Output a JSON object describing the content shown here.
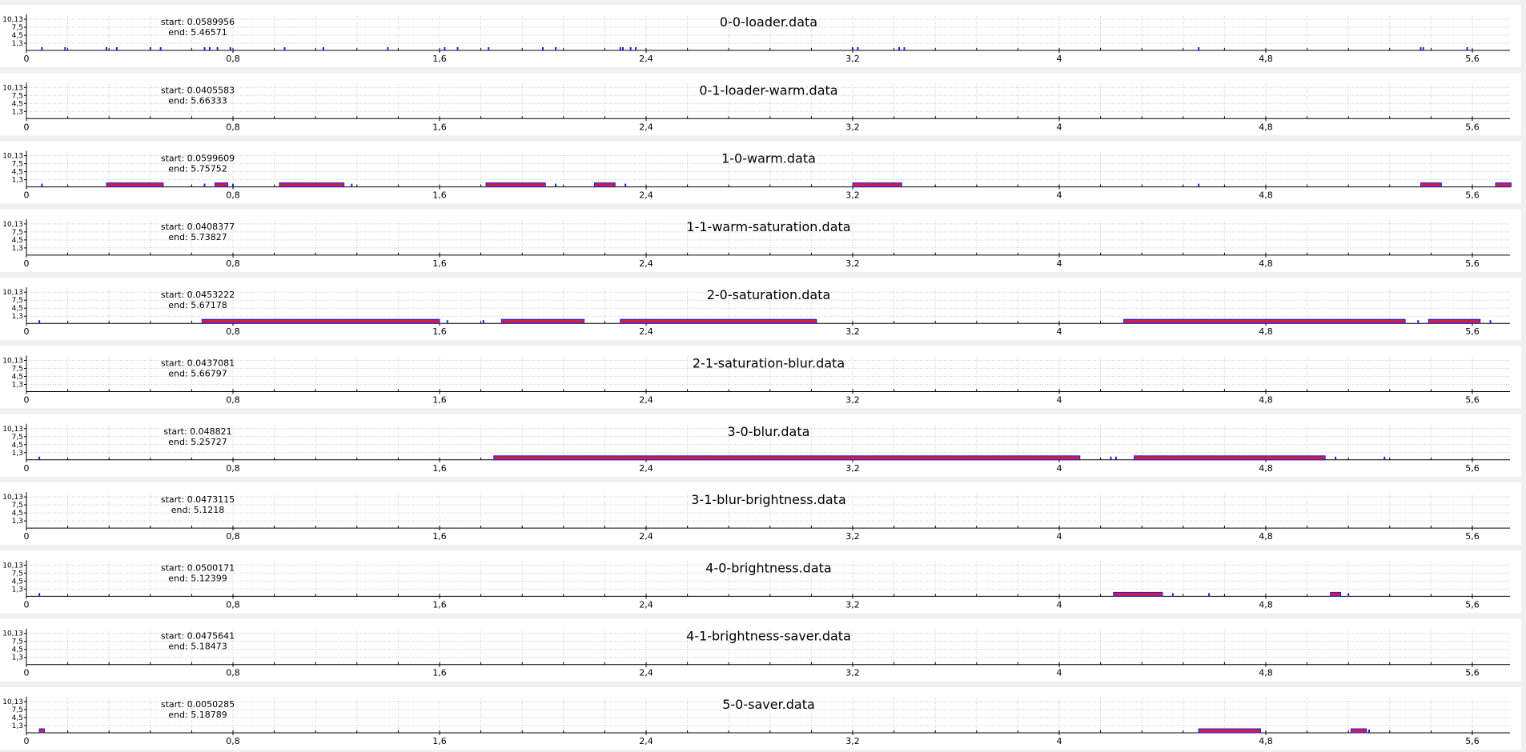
{
  "chart_data": [
    {
      "type": "bar",
      "title": "0-0-loader.data",
      "start_label": "start: 0.0589956",
      "end_label": "end: 5.46571",
      "xlim": [
        0,
        5.75
      ],
      "yticks": [
        "10,13",
        "7,5",
        "4,5",
        "1,3"
      ],
      "xticks": [
        "0",
        "0,8",
        "1,6",
        "2,4",
        "3,2",
        "4",
        "4,8",
        "5,6"
      ],
      "intervals": [],
      "events": [
        0.06,
        0.15,
        0.31,
        0.35,
        0.48,
        0.52,
        0.69,
        0.71,
        0.74,
        0.79,
        1.0,
        1.15,
        1.4,
        1.62,
        1.67,
        1.79,
        2.0,
        2.05,
        2.3,
        2.31,
        2.34,
        2.36,
        3.2,
        3.22,
        3.38,
        3.4,
        4.54,
        5.4,
        5.41,
        5.58
      ]
    },
    {
      "type": "bar",
      "title": "0-1-loader-warm.data",
      "start_label": "start: 0.0405583",
      "end_label": "end: 5.66333",
      "xlim": [
        0,
        5.75
      ],
      "yticks": [
        "10,13",
        "7,5",
        "4,5",
        "1,3"
      ],
      "xticks": [
        "0",
        "0,8",
        "1,6",
        "2,4",
        "3,2",
        "4",
        "4,8",
        "5,6"
      ],
      "intervals": [],
      "events": []
    },
    {
      "type": "bar",
      "title": "1-0-warm.data",
      "start_label": "start: 0.0599609",
      "end_label": "end: 5.75752",
      "xlim": [
        0,
        5.75
      ],
      "yticks": [
        "10,13",
        "7,5",
        "4,5",
        "1,3"
      ],
      "xticks": [
        "0",
        "0,8",
        "1,6",
        "2,4",
        "3,2",
        "4",
        "4,8",
        "5,6"
      ],
      "intervals": [
        [
          0.31,
          0.53
        ],
        [
          0.73,
          0.78
        ],
        [
          0.98,
          1.23
        ],
        [
          1.78,
          2.01
        ],
        [
          2.2,
          2.28
        ],
        [
          3.2,
          3.39
        ],
        [
          5.4,
          5.48
        ],
        [
          5.69,
          5.75
        ]
      ],
      "events": [
        0.06,
        0.69,
        0.8,
        1.26,
        2.05,
        2.32,
        4.54
      ]
    },
    {
      "type": "bar",
      "title": "1-1-warm-saturation.data",
      "start_label": "start: 0.0408377",
      "end_label": "end: 5.73827",
      "xlim": [
        0,
        5.75
      ],
      "yticks": [
        "10,13",
        "7,5",
        "4,5",
        "1,3"
      ],
      "xticks": [
        "0",
        "0,8",
        "1,6",
        "2,4",
        "3,2",
        "4",
        "4,8",
        "5,6"
      ],
      "intervals": [],
      "events": []
    },
    {
      "type": "bar",
      "title": "2-0-saturation.data",
      "start_label": "start: 0.0453222",
      "end_label": "end: 5.67178",
      "xlim": [
        0,
        5.75
      ],
      "yticks": [
        "10,13",
        "7,5",
        "4,5",
        "1,3"
      ],
      "xticks": [
        "0",
        "0,8",
        "1,6",
        "2,4",
        "3,2",
        "4",
        "4,8",
        "5,6"
      ],
      "intervals": [
        [
          0.68,
          1.6
        ],
        [
          1.84,
          2.16
        ],
        [
          2.3,
          3.06
        ],
        [
          4.25,
          5.34
        ],
        [
          5.43,
          5.63
        ]
      ],
      "events": [
        0.05,
        1.63,
        1.77,
        5.39,
        5.67
      ]
    },
    {
      "type": "bar",
      "title": "2-1-saturation-blur.data",
      "start_label": "start: 0.0437081",
      "end_label": "end: 5.66797",
      "xlim": [
        0,
        5.75
      ],
      "yticks": [
        "10,13",
        "7,5",
        "4,5",
        "1,3"
      ],
      "xticks": [
        "0",
        "0,8",
        "1,6",
        "2,4",
        "3,2",
        "4",
        "4,8",
        "5,6"
      ],
      "intervals": [],
      "events": []
    },
    {
      "type": "bar",
      "title": "3-0-blur.data",
      "start_label": "start: 0.048821",
      "end_label": "end: 5.25727",
      "xlim": [
        0,
        5.75
      ],
      "yticks": [
        "10,13",
        "7,5",
        "4,5",
        "1,3"
      ],
      "xticks": [
        "0",
        "0,8",
        "1,6",
        "2,4",
        "3,2",
        "4",
        "4,8",
        "5,6"
      ],
      "intervals": [
        [
          1.81,
          4.08
        ],
        [
          4.29,
          5.03
        ]
      ],
      "events": [
        0.05,
        4.2,
        4.22,
        5.07,
        5.26
      ]
    },
    {
      "type": "bar",
      "title": "3-1-blur-brightness.data",
      "start_label": "start: 0.0473115",
      "end_label": "end: 5.1218",
      "xlim": [
        0,
        5.75
      ],
      "yticks": [
        "10,13",
        "7,5",
        "4,5",
        "1,3"
      ],
      "xticks": [
        "0",
        "0,8",
        "1,6",
        "2,4",
        "3,2",
        "4",
        "4,8",
        "5,6"
      ],
      "intervals": [],
      "events": []
    },
    {
      "type": "bar",
      "title": "4-0-brightness.data",
      "start_label": "start: 0.0500171",
      "end_label": "end: 5.12399",
      "xlim": [
        0,
        5.75
      ],
      "yticks": [
        "10,13",
        "7,5",
        "4,5",
        "1,3"
      ],
      "xticks": [
        "0",
        "0,8",
        "1,6",
        "2,4",
        "3,2",
        "4",
        "4,8",
        "5,6"
      ],
      "intervals": [
        [
          4.21,
          4.4
        ],
        [
          5.05,
          5.09
        ]
      ],
      "events": [
        0.05,
        4.44,
        4.58,
        5.12
      ]
    },
    {
      "type": "bar",
      "title": "4-1-brightness-saver.data",
      "start_label": "start: 0.0475641",
      "end_label": "end: 5.18473",
      "xlim": [
        0,
        5.75
      ],
      "yticks": [
        "10,13",
        "7,5",
        "4,5",
        "1,3"
      ],
      "xticks": [
        "0",
        "0,8",
        "1,6",
        "2,4",
        "3,2",
        "4",
        "4,8",
        "5,6"
      ],
      "intervals": [],
      "events": []
    },
    {
      "type": "bar",
      "title": "5-0-saver.data",
      "start_label": "start: 0.0050285",
      "end_label": "end: 5.18789",
      "xlim": [
        0,
        5.75
      ],
      "yticks": [
        "10,13",
        "7,5",
        "4,5",
        "1,3"
      ],
      "xticks": [
        "0",
        "0,8",
        "1,6",
        "2,4",
        "3,2",
        "4",
        "4,8",
        "5,6"
      ],
      "intervals": [
        [
          0.05,
          0.07
        ],
        [
          4.54,
          4.78
        ],
        [
          5.13,
          5.19
        ]
      ],
      "events": [
        5.2
      ]
    }
  ],
  "colors": {
    "interval_fill": "#cc1f47",
    "interval_edge": "#1f1fdc",
    "event": "#1f1fdc",
    "panel": "#ffffff",
    "page": "#f0f0f0"
  }
}
